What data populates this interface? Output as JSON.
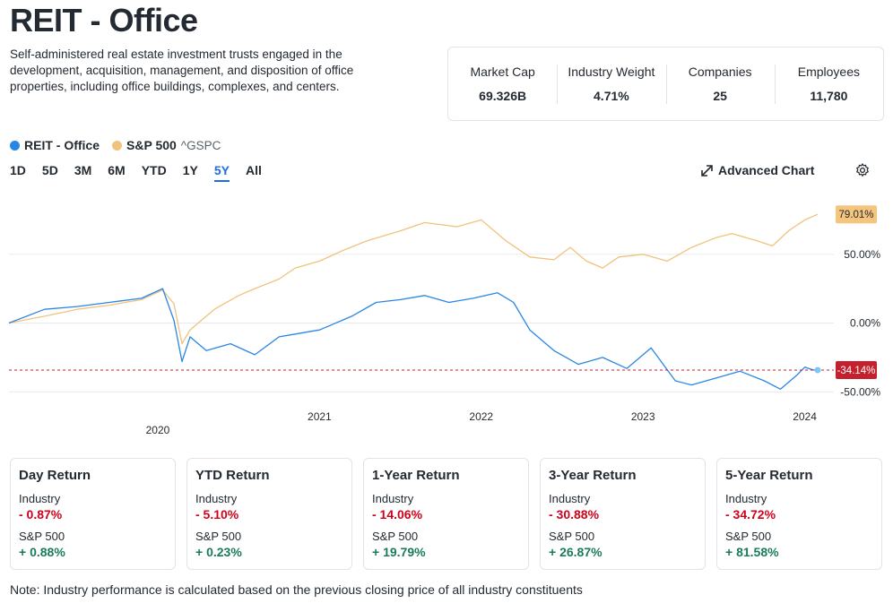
{
  "header": {
    "title": "REIT - Office",
    "description": "Self-administered real estate investment trusts engaged in the development, acquisition, management, and disposition of office properties, including office buildings, complexes, and centers."
  },
  "stats": [
    {
      "label": "Market Cap",
      "value": "69.326B"
    },
    {
      "label": "Industry Weight",
      "value": "4.71%"
    },
    {
      "label": "Companies",
      "value": "25"
    },
    {
      "label": "Employees",
      "value": "11,780"
    }
  ],
  "legend": {
    "industry": "REIT - Office",
    "index": "S&P 500",
    "index_ticker": "^GSPC"
  },
  "ranges": [
    "1D",
    "5D",
    "3M",
    "6M",
    "YTD",
    "1Y",
    "5Y",
    "All"
  ],
  "active_range": "5Y",
  "toolbar": {
    "advanced_chart": "Advanced Chart"
  },
  "colors": {
    "industry": "#2a86e5",
    "index": "#f1c27d",
    "negative": "#d0021b",
    "positive": "#1a7a5c",
    "baseline": "#c4202e"
  },
  "chart_data": {
    "type": "line",
    "x_ticks": [
      "2020",
      "2021",
      "2022",
      "2023",
      "2024"
    ],
    "y_ticks": [
      "50.00%",
      "0.00%",
      "-50.00%"
    ],
    "ylim": [
      -55,
      85
    ],
    "x_range": [
      2019.08,
      2024.08
    ],
    "series": [
      {
        "name": "S&P 500",
        "color": "#f1c27d",
        "end_label": "79.01%",
        "x": [
          2019.08,
          2019.3,
          2019.5,
          2019.7,
          2019.9,
          2020.03,
          2020.1,
          2020.15,
          2020.2,
          2020.25,
          2020.35,
          2020.5,
          2020.6,
          2020.75,
          2020.85,
          2021.0,
          2021.15,
          2021.3,
          2021.5,
          2021.65,
          2021.85,
          2022.0,
          2022.15,
          2022.3,
          2022.45,
          2022.55,
          2022.65,
          2022.75,
          2022.85,
          2023.0,
          2023.15,
          2023.3,
          2023.45,
          2023.55,
          2023.7,
          2023.8,
          2023.9,
          2024.0,
          2024.08
        ],
        "values": [
          0,
          5,
          10,
          13,
          17,
          24,
          14,
          -15,
          -5,
          0,
          10,
          20,
          25,
          32,
          40,
          45,
          53,
          60,
          67,
          73,
          70,
          75,
          60,
          48,
          46,
          55,
          45,
          40,
          48,
          50,
          45,
          55,
          62,
          65,
          60,
          56,
          67,
          75,
          79.01
        ]
      },
      {
        "name": "REIT - Office",
        "color": "#2a86e5",
        "end_label": "-34.14%",
        "x": [
          2019.08,
          2019.3,
          2019.5,
          2019.7,
          2019.9,
          2020.03,
          2020.1,
          2020.15,
          2020.2,
          2020.3,
          2020.45,
          2020.6,
          2020.75,
          2020.85,
          2021.0,
          2021.2,
          2021.35,
          2021.5,
          2021.65,
          2021.8,
          2021.95,
          2022.1,
          2022.2,
          2022.3,
          2022.45,
          2022.6,
          2022.75,
          2022.9,
          2023.05,
          2023.2,
          2023.3,
          2023.45,
          2023.6,
          2023.75,
          2023.85,
          2023.95,
          2024.0,
          2024.05,
          2024.08
        ],
        "values": [
          0,
          10,
          12,
          15,
          18,
          25,
          2,
          -28,
          -10,
          -20,
          -15,
          -23,
          -10,
          -8,
          -5,
          5,
          15,
          17,
          20,
          15,
          18,
          22,
          15,
          -5,
          -20,
          -30,
          -25,
          -33,
          -18,
          -42,
          -45,
          -40,
          -35,
          -42,
          -48,
          -38,
          -32,
          -34,
          -34.14
        ]
      }
    ]
  },
  "returns": [
    {
      "title": "Day Return",
      "industry_label": "Industry",
      "industry": "- 0.87%",
      "index_label": "S&P 500",
      "index": "+ 0.88%"
    },
    {
      "title": "YTD Return",
      "industry_label": "Industry",
      "industry": "- 5.10%",
      "index_label": "S&P 500",
      "index": "+ 0.23%"
    },
    {
      "title": "1-Year Return",
      "industry_label": "Industry",
      "industry": "- 14.06%",
      "index_label": "S&P 500",
      "index": "+ 19.79%"
    },
    {
      "title": "3-Year Return",
      "industry_label": "Industry",
      "industry": "- 30.88%",
      "index_label": "S&P 500",
      "index": "+ 26.87%"
    },
    {
      "title": "5-Year Return",
      "industry_label": "Industry",
      "industry": "- 34.72%",
      "index_label": "S&P 500",
      "index": "+ 81.58%"
    }
  ],
  "note": "Note: Industry performance is calculated based on the previous closing price of all industry constituents"
}
